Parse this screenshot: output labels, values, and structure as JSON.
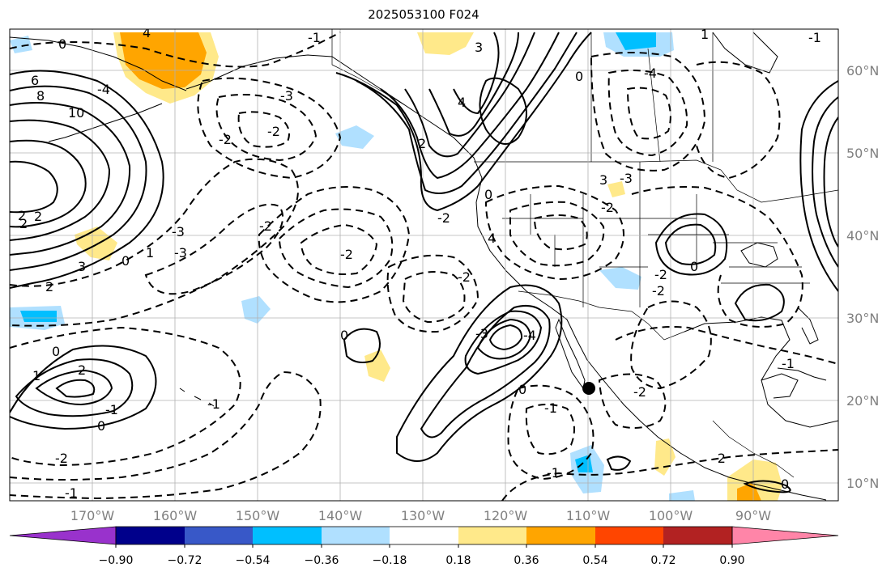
{
  "title": "2025053100 F024",
  "lat_labels": [
    "60°N",
    "50°N",
    "40°N",
    "30°N",
    "20°N",
    "10°N"
  ],
  "lon_labels": [
    "170°W",
    "160°W",
    "150°W",
    "140°W",
    "130°W",
    "120°W",
    "110°W",
    "100°W",
    "90°W"
  ],
  "colorbar": {
    "ticks": [
      "−0.90",
      "−0.72",
      "−0.54",
      "−0.36",
      "−0.18",
      "0.18",
      "0.36",
      "0.54",
      "0.72",
      "0.90"
    ],
    "colors": [
      "#9932cc",
      "#00008b",
      "#3858c8",
      "#00bfff",
      "#b0e0ff",
      "#ffffff",
      "#ffe98a",
      "#ffa500",
      "#ff4500",
      "#b22222",
      "#ff85a8"
    ]
  },
  "contour_labels": [
    "0",
    "6",
    "8",
    "10",
    "4",
    "2",
    "2",
    "3",
    "0",
    "1",
    "2",
    "0",
    "-1",
    "-2",
    "-2",
    "-3",
    "-4",
    "-3",
    "-2",
    "-4",
    "3",
    "4",
    "2",
    "0",
    "-3",
    "-4",
    "1",
    "-2",
    "-2",
    "-1",
    "-1",
    "0",
    "-1",
    "-2",
    "0",
    "2",
    "3",
    "4",
    "-1",
    "-2",
    "-3",
    "-3",
    "0",
    "-1",
    "0",
    "1",
    "0",
    "-2",
    "-2",
    "0",
    "2",
    "-2",
    "-2",
    "-1",
    "-2",
    "-1"
  ],
  "colors": {
    "positive_light": "#ffe98a",
    "positive_mid": "#ffa500",
    "negative_light": "#b0e0ff",
    "negative_mid": "#00bfff",
    "contour": "#000000",
    "grid": "#b0b0b0",
    "axis_labels": "#808080"
  },
  "marker": "black-dot"
}
